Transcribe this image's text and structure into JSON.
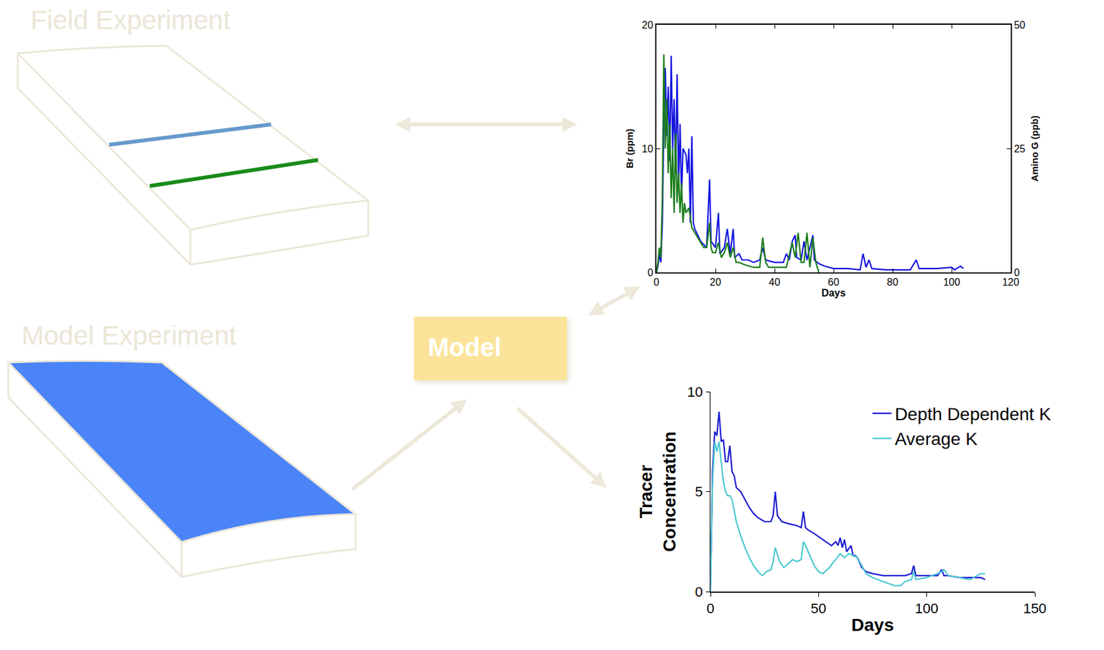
{
  "labels": {
    "field_experiment": "Field Experiment",
    "model_experiment": "Model Experiment",
    "model": "Model"
  },
  "chart_data": [
    {
      "type": "line",
      "x_label": "Days",
      "y_label": "Br (ppm)",
      "y2_label": "Amino G (ppb)",
      "xlim": [
        0,
        120
      ],
      "xticks": [
        0,
        20,
        40,
        60,
        80,
        100,
        120
      ],
      "ylim": [
        0,
        20
      ],
      "yticks": [
        0,
        10,
        20
      ],
      "y2lim": [
        0,
        50
      ],
      "y2ticks": [
        0,
        25,
        50
      ],
      "series": [
        {
          "color": "#1515e0",
          "x": [
            0,
            0.5,
            1,
            1.5,
            2,
            2.5,
            3,
            3.5,
            4,
            4.5,
            5,
            5.5,
            6,
            6.5,
            7,
            7.5,
            8,
            8.5,
            9,
            10,
            10.5,
            11,
            11.5,
            12,
            12.5,
            13,
            15,
            17,
            18,
            18.5,
            20,
            21,
            21.5,
            23,
            24,
            25,
            26,
            26.5,
            28,
            29,
            31,
            33,
            35,
            36,
            37,
            40,
            43,
            44,
            45,
            46,
            47,
            47.5,
            49,
            50,
            51,
            53,
            53.5,
            55,
            57,
            60,
            65,
            69,
            70,
            71,
            72,
            73,
            78,
            86,
            88,
            89,
            95,
            100,
            101,
            103,
            104
          ],
          "values": [
            0,
            0.5,
            1.5,
            0.8,
            4,
            12,
            16.5,
            11,
            15,
            9,
            17.5,
            10,
            14,
            8,
            16,
            7,
            12,
            6,
            10,
            9.5,
            8,
            10,
            4,
            11,
            4,
            3.5,
            2.5,
            2,
            7.5,
            2.5,
            2,
            4.8,
            1.5,
            2,
            3.5,
            1.5,
            3.5,
            1.2,
            1.5,
            1,
            1,
            0.8,
            1,
            2,
            1,
            0.8,
            0.8,
            1.5,
            1,
            2.5,
            3,
            1.2,
            1,
            2.5,
            1,
            3,
            1,
            0.7,
            0.5,
            0.3,
            0.3,
            0.2,
            1.5,
            0.4,
            1,
            0.3,
            0.2,
            0.2,
            1,
            0.3,
            0.3,
            0.4,
            0.2,
            0.5,
            0.3
          ]
        },
        {
          "color": "#1a7d1a",
          "axis": "y2",
          "x": [
            0,
            0.5,
            1,
            1.5,
            2,
            2.5,
            3,
            3.5,
            4,
            4.5,
            5,
            5.5,
            6,
            6.5,
            7,
            7.5,
            8,
            8.5,
            9,
            9.5,
            10,
            11,
            12,
            13,
            14,
            15,
            16,
            17,
            18,
            18.5,
            19,
            20,
            21,
            22,
            23,
            24,
            25,
            26,
            27,
            28,
            30,
            33,
            35,
            36,
            37,
            38,
            40,
            42,
            44,
            46,
            47,
            48,
            49,
            50,
            51,
            52,
            53,
            54,
            55
          ],
          "values": [
            0,
            2,
            5,
            3,
            15,
            44,
            25,
            35,
            20,
            30,
            15,
            25,
            12,
            28,
            14,
            20,
            12,
            18,
            10,
            14,
            12,
            13,
            9,
            8,
            7,
            6,
            5,
            5,
            10,
            5,
            4,
            4,
            6,
            3,
            4,
            6,
            3,
            5,
            2,
            2,
            1.5,
            1,
            1,
            7,
            2,
            1,
            1,
            1,
            1,
            6,
            3,
            8,
            2,
            2,
            8,
            1,
            7,
            2,
            0
          ]
        }
      ]
    },
    {
      "type": "line",
      "x_label": "Days",
      "y_label": "Tracer Concentration",
      "xlim": [
        0,
        150
      ],
      "xticks": [
        0,
        50,
        100,
        150
      ],
      "ylim": [
        0,
        10
      ],
      "yticks": [
        0,
        5,
        10
      ],
      "legend": "upper right",
      "series": [
        {
          "name": "Depth Dependent K",
          "color": "#1a1ad2",
          "x": [
            0,
            1,
            2,
            3,
            4,
            5,
            6,
            7,
            8,
            9,
            10,
            11,
            12,
            14,
            16,
            18,
            20,
            22,
            25,
            28,
            29,
            30,
            31,
            33,
            36,
            40,
            42,
            43,
            44,
            45,
            48,
            52,
            56,
            58,
            59,
            60,
            61,
            62,
            63,
            65,
            66,
            67,
            68,
            70,
            72,
            75,
            80,
            85,
            90,
            93,
            94,
            95,
            100,
            105,
            107,
            108,
            110,
            115,
            120,
            125,
            127
          ],
          "values": [
            0,
            6,
            8,
            7.8,
            9,
            7.5,
            7.6,
            6.5,
            6.5,
            7.3,
            6,
            5.8,
            5.2,
            5,
            4.6,
            4.2,
            3.9,
            3.7,
            3.5,
            3.5,
            3.8,
            5,
            3.8,
            3.5,
            3.4,
            3.3,
            3.2,
            4,
            3.2,
            3.1,
            2.9,
            2.6,
            2.3,
            2.5,
            2.3,
            2.7,
            2.2,
            2.6,
            2,
            2.3,
            1.8,
            1.8,
            1.7,
            1.2,
            1,
            0.9,
            0.8,
            0.8,
            0.8,
            0.9,
            1.3,
            0.8,
            0.8,
            0.8,
            1.1,
            0.8,
            0.8,
            0.7,
            0.7,
            0.7,
            0.6
          ]
        },
        {
          "name": "Average K",
          "color": "#4cc8d0",
          "x": [
            0,
            1,
            2,
            3,
            4,
            5,
            6,
            7,
            8,
            9,
            10,
            12,
            14,
            16,
            18,
            20,
            22,
            24,
            26,
            28,
            29,
            30,
            32,
            34,
            36,
            38,
            40,
            42,
            43,
            44,
            46,
            48,
            50,
            52,
            55,
            58,
            60,
            62,
            64,
            66,
            68,
            70,
            72,
            75,
            80,
            85,
            88,
            90,
            93,
            94,
            95,
            100,
            105,
            107,
            108,
            110,
            115,
            120,
            125,
            127
          ],
          "values": [
            0,
            5.5,
            7.5,
            7,
            7.5,
            6.5,
            5.5,
            5,
            4.8,
            4.8,
            4.6,
            3.5,
            2.8,
            2.2,
            1.7,
            1.3,
            1,
            0.8,
            1,
            1.1,
            1.5,
            2.2,
            1.5,
            1.2,
            1.4,
            1.6,
            1.5,
            1.6,
            2.5,
            2.3,
            1.8,
            1.3,
            1,
            0.9,
            1.2,
            1.6,
            1.9,
            1.7,
            1.9,
            1.8,
            1.7,
            1.3,
            0.9,
            0.7,
            0.5,
            0.3,
            0.3,
            0.5,
            0.6,
            1,
            0.6,
            0.7,
            0.9,
            1,
            1.1,
            0.8,
            0.7,
            0.6,
            0.9,
            0.9
          ]
        }
      ]
    }
  ]
}
